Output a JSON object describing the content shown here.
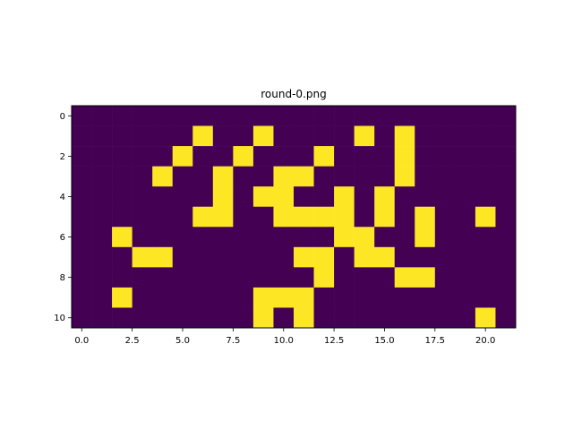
{
  "chart_data": {
    "type": "heatmap",
    "title": "round-0.png",
    "xlabel": "",
    "ylabel": "",
    "n_rows": 11,
    "n_cols": 22,
    "xlim": [
      -0.5,
      21.5
    ],
    "ylim": [
      10.5,
      -0.5
    ],
    "xticks": [
      0.0,
      2.5,
      5.0,
      7.5,
      10.0,
      12.5,
      15.0,
      17.5,
      20.0
    ],
    "xtick_labels": [
      "0.0",
      "2.5",
      "5.0",
      "7.5",
      "10.0",
      "12.5",
      "15.0",
      "17.5",
      "20.0"
    ],
    "yticks": [
      0,
      2,
      4,
      6,
      8,
      10
    ],
    "ytick_labels": [
      "0",
      "2",
      "4",
      "6",
      "8",
      "10"
    ],
    "colormap": "viridis",
    "color_low": "#440154",
    "color_high": "#fde725",
    "grid": false,
    "legend": "none",
    "values": [
      [
        0,
        0,
        0,
        0,
        0,
        0,
        0,
        0,
        0,
        0,
        0,
        0,
        0,
        0,
        0,
        0,
        0,
        0,
        0,
        0,
        0,
        0
      ],
      [
        0,
        0,
        0,
        0,
        0,
        0,
        1,
        0,
        0,
        1,
        0,
        0,
        0,
        0,
        1,
        0,
        1,
        0,
        0,
        0,
        0,
        0
      ],
      [
        0,
        0,
        0,
        0,
        0,
        1,
        0,
        0,
        1,
        0,
        0,
        0,
        1,
        0,
        0,
        0,
        1,
        0,
        0,
        0,
        0,
        0
      ],
      [
        0,
        0,
        0,
        0,
        1,
        0,
        0,
        1,
        0,
        0,
        1,
        1,
        0,
        0,
        0,
        0,
        1,
        0,
        0,
        0,
        0,
        0
      ],
      [
        0,
        0,
        0,
        0,
        0,
        0,
        0,
        1,
        0,
        1,
        1,
        0,
        0,
        1,
        0,
        1,
        0,
        0,
        0,
        0,
        0,
        0
      ],
      [
        0,
        0,
        0,
        0,
        0,
        0,
        1,
        1,
        0,
        0,
        1,
        1,
        1,
        1,
        0,
        1,
        0,
        1,
        0,
        0,
        1,
        0
      ],
      [
        0,
        0,
        1,
        0,
        0,
        0,
        0,
        0,
        0,
        0,
        0,
        0,
        0,
        1,
        1,
        0,
        0,
        1,
        0,
        0,
        0,
        0
      ],
      [
        0,
        0,
        0,
        1,
        1,
        0,
        0,
        0,
        0,
        0,
        0,
        1,
        1,
        0,
        1,
        1,
        0,
        0,
        0,
        0,
        0,
        0
      ],
      [
        0,
        0,
        0,
        0,
        0,
        0,
        0,
        0,
        0,
        0,
        0,
        0,
        1,
        0,
        0,
        0,
        1,
        1,
        0,
        0,
        0,
        0
      ],
      [
        0,
        0,
        1,
        0,
        0,
        0,
        0,
        0,
        0,
        1,
        1,
        1,
        0,
        0,
        0,
        0,
        0,
        0,
        0,
        0,
        0,
        0
      ],
      [
        0,
        0,
        0,
        0,
        0,
        0,
        0,
        0,
        0,
        1,
        0,
        1,
        0,
        0,
        0,
        0,
        0,
        0,
        0,
        0,
        1,
        0
      ]
    ]
  }
}
